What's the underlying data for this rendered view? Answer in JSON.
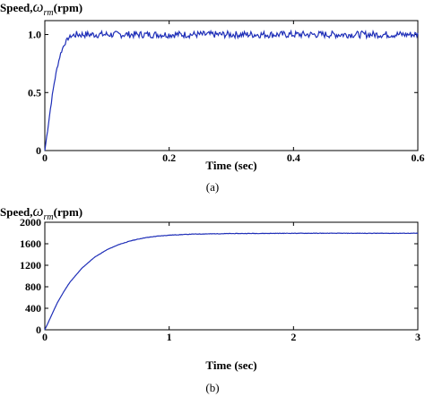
{
  "chart_data": [
    {
      "type": "line",
      "caption": "(a)",
      "ylabel": {
        "prefix": "Speed,",
        "symbol": "ω",
        "subscript": "rm",
        "unit": "(rpm)"
      },
      "xlabel": "Time (sec)",
      "xlim": [
        0,
        0.6
      ],
      "ylim": [
        0,
        1.12
      ],
      "xticks": [
        0,
        0.2,
        0.4,
        0.6
      ],
      "xtick_labels": [
        "0",
        "0.2",
        "0.4",
        "0.6"
      ],
      "yticks": [
        0,
        0.5,
        1.0
      ],
      "ytick_labels": [
        "0",
        "0.5",
        "1.0"
      ],
      "grid": false,
      "series": [
        {
          "color": "#1f2fb8",
          "x": [
            0,
            0.005,
            0.01,
            0.015,
            0.02,
            0.025,
            0.03,
            0.035,
            0.04,
            0.045,
            0.05,
            0.06,
            0.07,
            0.08,
            0.1,
            0.15,
            0.2,
            0.3,
            0.4,
            0.5,
            0.6
          ],
          "y": [
            0,
            0.2,
            0.4,
            0.58,
            0.72,
            0.83,
            0.9,
            0.95,
            0.98,
            0.99,
            1.0,
            1.0,
            1.0,
            1.0,
            1.0,
            1.0,
            1.0,
            1.0,
            1.0,
            1.0,
            1.0
          ],
          "noise_amplitude": 0.03
        }
      ]
    },
    {
      "type": "line",
      "caption": "(b)",
      "ylabel": {
        "prefix": "Speed,",
        "symbol": "ω",
        "subscript": "rm",
        "unit": "(rpm)"
      },
      "xlabel": "Time (sec)",
      "xlim": [
        0,
        3
      ],
      "ylim": [
        0,
        2000
      ],
      "xticks": [
        0,
        1,
        2,
        3
      ],
      "xtick_labels": [
        "0",
        "1",
        "2",
        "3"
      ],
      "yticks": [
        0,
        400,
        800,
        1200,
        1600,
        2000
      ],
      "ytick_labels": [
        "0",
        "400",
        "800",
        "1200",
        "1600",
        "2000"
      ],
      "grid": false,
      "series": [
        {
          "color": "#1f2fb8",
          "x": [
            0,
            0.05,
            0.1,
            0.15,
            0.2,
            0.3,
            0.4,
            0.5,
            0.6,
            0.7,
            0.8,
            0.9,
            1.0,
            1.2,
            1.5,
            2.0,
            2.5,
            3.0
          ],
          "y": [
            0,
            250,
            500,
            700,
            880,
            1150,
            1350,
            1490,
            1590,
            1660,
            1710,
            1740,
            1760,
            1780,
            1790,
            1795,
            1795,
            1795
          ],
          "noise_amplitude": 4
        }
      ]
    }
  ]
}
